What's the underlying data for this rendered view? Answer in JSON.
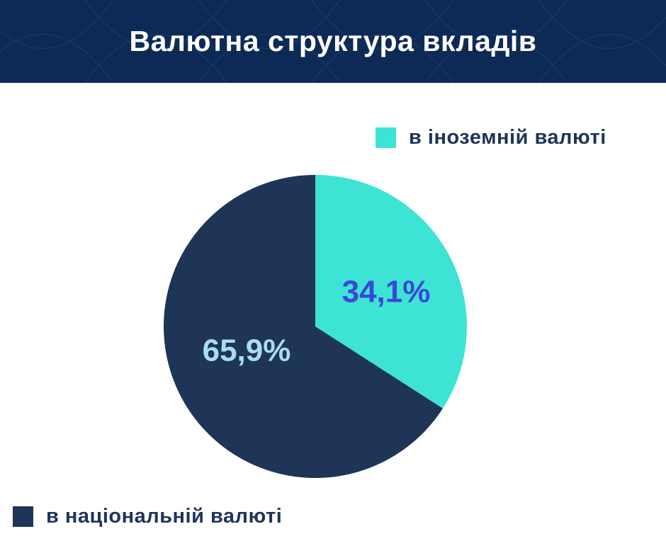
{
  "header": {
    "title": "Валютна структура вкладів"
  },
  "chart_data": {
    "type": "pie",
    "title": "Валютна структура вкладів",
    "slices": [
      {
        "name": "в іноземній валюті",
        "value": 34.1,
        "label": "34,1%",
        "color": "#3de4d6",
        "label_color": "#3b47d6"
      },
      {
        "name": "в національній валюті",
        "value": 65.9,
        "label": "65,9%",
        "color": "#1e3558",
        "label_color": "#a9dcf2"
      }
    ],
    "start_angle": "12 o'clock, clockwise",
    "legend_placement": "top-right and bottom-left"
  }
}
